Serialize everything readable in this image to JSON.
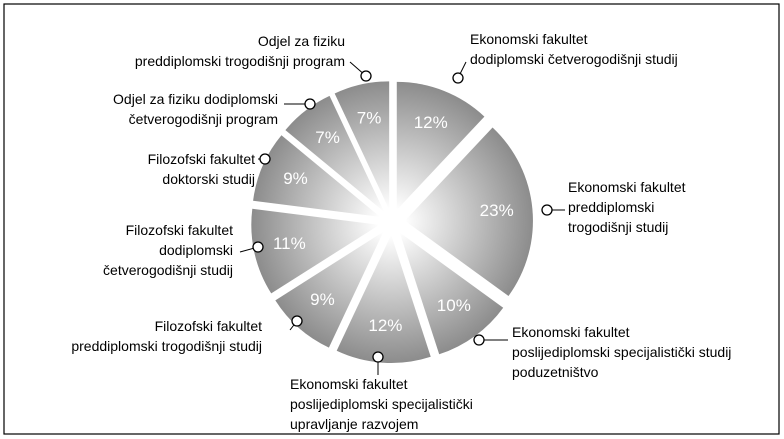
{
  "chart_data": {
    "type": "pie",
    "categories": [
      "Ekonomski fakultet\ndodiplomski četverogodišnji studij",
      "Ekonomski fakultet\npreddiplomski\ntrogodišnji studij",
      "Ekonomski fakultet\nposlijediplomski specijalistički studij\npoduzetništvo",
      "Ekonomski fakultet\nposlijediplomski specijalistički\nupravljanje razvojem",
      "Filozofski fakultet\npreddiplomski trogodišnji studij",
      "Filozofski fakultet\ndodiplomski\nčetverogodišnji studij",
      "Filozofski fakultet\ndoktorski studij",
      "Odjel za fiziku dodiplomski\nčetverogodišnji program",
      "Odjel za fiziku\npreddiplomski trogodišnji program"
    ],
    "values": [
      12,
      23,
      10,
      12,
      9,
      11,
      9,
      7,
      7
    ],
    "value_labels": [
      "12%",
      "23%",
      "10%",
      "12%",
      "9%",
      "11%",
      "9%",
      "7%",
      "7%"
    ],
    "colors": [
      "#ffffff",
      "#8c8c8c"
    ]
  }
}
